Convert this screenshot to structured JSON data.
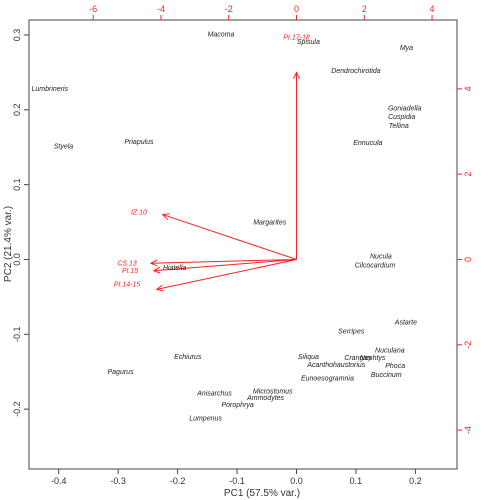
{
  "chart_data": {
    "type": "scatter",
    "title": "",
    "xlabel": "PC1 (57.5% var.)",
    "ylabel": "PC2 (21.4% var.)",
    "xlim": [
      -0.45,
      0.27
    ],
    "ylim": [
      -0.28,
      0.32
    ],
    "x_ticks": [
      -0.4,
      -0.3,
      -0.2,
      -0.1,
      0.0,
      0.1,
      0.2
    ],
    "x_tick_labels": [
      "-0.4",
      "-0.3",
      "-0.2",
      "-0.1",
      "0.0",
      "0.1",
      "0.2"
    ],
    "y_ticks": [
      -0.2,
      -0.1,
      0.0,
      0.1,
      0.2,
      0.3
    ],
    "y_tick_labels": [
      "-0.2",
      "-0.1",
      "0.0",
      "0.1",
      "0.2",
      "0.3"
    ],
    "top_ticks": [
      -6,
      -4,
      -2,
      0,
      2,
      4
    ],
    "top_tick_labels": [
      "-6",
      "-4",
      "-2",
      "0",
      "2",
      "4"
    ],
    "right_ticks": [
      -4,
      -2,
      0,
      2,
      4
    ],
    "right_tick_labels": [
      "-4",
      "-2",
      "0",
      "2",
      "4"
    ],
    "secondary_scale_per_unit": 0.057,
    "grid": false,
    "species": [
      {
        "label": "Macoma",
        "x": -0.127,
        "y": 0.302
      },
      {
        "label": "Spisula",
        "x": 0.02,
        "y": 0.292
      },
      {
        "label": "Mya",
        "x": 0.185,
        "y": 0.284
      },
      {
        "label": "Dendrochirotida",
        "x": 0.1,
        "y": 0.253
      },
      {
        "label": "Lumbrineris",
        "x": -0.415,
        "y": 0.229
      },
      {
        "label": "Goniadella",
        "x": 0.182,
        "y": 0.203
      },
      {
        "label": "Cuspidia",
        "x": 0.177,
        "y": 0.192
      },
      {
        "label": "Tellina",
        "x": 0.172,
        "y": 0.18
      },
      {
        "label": "Priapulus",
        "x": -0.265,
        "y": 0.158
      },
      {
        "label": "Ennucula",
        "x": 0.12,
        "y": 0.157
      },
      {
        "label": "Styela",
        "x": -0.392,
        "y": 0.152
      },
      {
        "label": "Margarites",
        "x": -0.045,
        "y": 0.051
      },
      {
        "label": "Nucula",
        "x": 0.142,
        "y": 0.005
      },
      {
        "label": "Cilcocardium",
        "x": 0.132,
        "y": -0.007
      },
      {
        "label": "Hiatella",
        "x": -0.205,
        "y": -0.01
      },
      {
        "label": "Astarte",
        "x": 0.184,
        "y": -0.083
      },
      {
        "label": "Serripes",
        "x": 0.092,
        "y": -0.095
      },
      {
        "label": "Nuculana",
        "x": 0.157,
        "y": -0.12
      },
      {
        "label": "Crangon",
        "x": 0.103,
        "y": -0.13
      },
      {
        "label": "Nephtys",
        "x": 0.128,
        "y": -0.13
      },
      {
        "label": "Siliqua",
        "x": 0.02,
        "y": -0.129
      },
      {
        "label": "Acanthohaustorius",
        "x": 0.067,
        "y": -0.14
      },
      {
        "label": "Phoca",
        "x": 0.166,
        "y": -0.141
      },
      {
        "label": "Echiurus",
        "x": -0.183,
        "y": -0.129
      },
      {
        "label": "Pagurus",
        "x": -0.296,
        "y": -0.149
      },
      {
        "label": "Buccinum",
        "x": 0.151,
        "y": -0.153
      },
      {
        "label": "Eunoesogramnia",
        "x": 0.052,
        "y": -0.158
      },
      {
        "label": "Anisarchus",
        "x": -0.138,
        "y": -0.178
      },
      {
        "label": "Microstomus",
        "x": -0.04,
        "y": -0.175
      },
      {
        "label": "Ammodytes",
        "x": -0.052,
        "y": -0.184
      },
      {
        "label": "Porophrya",
        "x": -0.099,
        "y": -0.193
      },
      {
        "label": "Lumpenus",
        "x": -0.153,
        "y": -0.211
      }
    ],
    "vectors": [
      {
        "label": "PI.17-18",
        "x": 0.0,
        "y": 0.25,
        "label_x": 0.0,
        "label_y": 0.298
      },
      {
        "label": "IZ.10",
        "x": -0.225,
        "y": 0.06,
        "label_x": -0.265,
        "label_y": 0.064
      },
      {
        "label": "CS.13",
        "x": -0.245,
        "y": -0.005,
        "label_x": -0.285,
        "label_y": -0.004
      },
      {
        "label": "PI.15",
        "x": -0.24,
        "y": -0.015,
        "label_x": -0.28,
        "label_y": -0.014
      },
      {
        "label": "PI.14-15",
        "x": -0.235,
        "y": -0.04,
        "label_x": -0.285,
        "label_y": -0.032
      }
    ]
  }
}
